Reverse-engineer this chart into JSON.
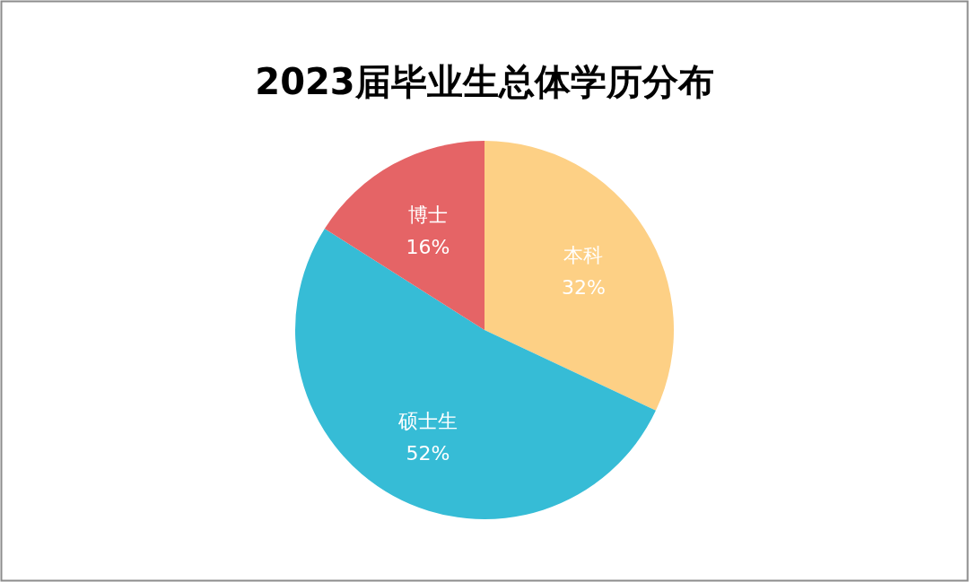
{
  "chart_data": {
    "type": "pie",
    "title": "2023届毕业生总体学历分布",
    "categories": [
      "本科",
      "硕士生",
      "博士"
    ],
    "values": [
      32,
      52,
      16
    ],
    "colors": [
      "#fdd085",
      "#36bcd6",
      "#e56466"
    ],
    "value_labels": [
      "32%",
      "52%",
      "16%"
    ]
  }
}
